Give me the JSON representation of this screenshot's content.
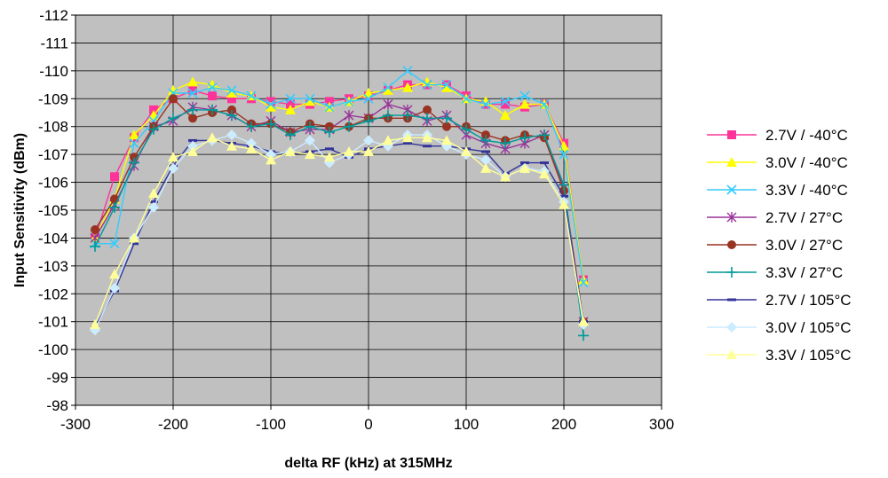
{
  "chart_data": {
    "type": "line",
    "xlabel": "delta RF (kHz) at 315MHz",
    "ylabel": "Input Sensitivity (dBm)",
    "xlim": [
      -300,
      300
    ],
    "ylim": [
      -98,
      -112
    ],
    "y_axis_reversed": true,
    "x_ticks": [
      -300,
      -200,
      -100,
      0,
      100,
      200,
      300
    ],
    "y_ticks": [
      -112,
      -111,
      -110,
      -109,
      -108,
      -107,
      -106,
      -105,
      -104,
      -103,
      -102,
      -101,
      -100,
      -99,
      -98
    ],
    "grid": true,
    "legend_position": "right",
    "plot_background": "#c0c0c0",
    "x": [
      -280,
      -260,
      -240,
      -220,
      -200,
      -180,
      -160,
      -140,
      -120,
      -100,
      -80,
      -60,
      -40,
      -20,
      0,
      20,
      40,
      60,
      80,
      100,
      120,
      140,
      160,
      180,
      200,
      220
    ],
    "series": [
      {
        "name": "2.7V / -40°C",
        "color": "#ff3399",
        "marker": "square",
        "values": [
          -104.0,
          -106.2,
          -107.6,
          -108.6,
          -109.0,
          -109.3,
          -109.1,
          -109.0,
          -109.0,
          -108.9,
          -108.8,
          -108.8,
          -108.9,
          -109.0,
          -109.1,
          -109.3,
          -109.5,
          -109.5,
          -109.5,
          -109.1,
          -108.8,
          -108.8,
          -108.7,
          -108.8,
          -107.4,
          -102.5
        ]
      },
      {
        "name": "3.0V / -40°C",
        "color": "#ffff00",
        "marker": "triangle",
        "values": [
          -104.0,
          -105.4,
          -107.7,
          -108.4,
          -109.3,
          -109.6,
          -109.5,
          -109.2,
          -109.1,
          -108.7,
          -108.6,
          -108.9,
          -108.7,
          -108.9,
          -109.2,
          -109.3,
          -109.4,
          -109.6,
          -109.4,
          -109.0,
          -108.9,
          -108.4,
          -108.8,
          -108.8,
          -107.3,
          -102.5
        ]
      },
      {
        "name": "3.3V / -40°C",
        "color": "#33ccff",
        "marker": "x",
        "values": [
          -103.8,
          -103.8,
          -107.4,
          -108.2,
          -109.2,
          -109.2,
          -109.4,
          -109.3,
          -109.1,
          -108.8,
          -109.0,
          -109.0,
          -108.7,
          -108.9,
          -109.0,
          -109.4,
          -110.0,
          -109.5,
          -109.5,
          -109.0,
          -108.8,
          -108.9,
          -109.1,
          -108.8,
          -107.0,
          -102.4
        ]
      },
      {
        "name": "2.7V / 27°C",
        "color": "#993399",
        "marker": "asterisk",
        "values": [
          -104.0,
          -105.2,
          -106.6,
          -108.0,
          -108.2,
          -108.7,
          -108.6,
          -108.4,
          -108.0,
          -108.2,
          -107.8,
          -107.9,
          -107.9,
          -108.4,
          -108.3,
          -108.8,
          -108.6,
          -108.2,
          -108.4,
          -107.7,
          -107.4,
          -107.2,
          -107.4,
          -107.7,
          -105.8,
          -101.0
        ]
      },
      {
        "name": "3.0V / 27°C",
        "color": "#993322",
        "marker": "circle",
        "values": [
          -104.3,
          -105.4,
          -106.9,
          -108.0,
          -109.0,
          -108.3,
          -108.5,
          -108.6,
          -108.1,
          -108.1,
          -107.8,
          -108.1,
          -108.0,
          -108.0,
          -108.3,
          -108.3,
          -108.3,
          -108.6,
          -108.0,
          -108.0,
          -107.7,
          -107.5,
          -107.7,
          -107.6,
          -105.7,
          -101.0
        ]
      },
      {
        "name": "3.3V / 27°C",
        "color": "#009999",
        "marker": "plus",
        "values": [
          -103.7,
          -105.1,
          -106.7,
          -107.9,
          -108.3,
          -108.6,
          -108.6,
          -108.4,
          -108.0,
          -108.1,
          -107.7,
          -108.0,
          -107.8,
          -108.0,
          -108.2,
          -108.4,
          -108.4,
          -108.3,
          -108.3,
          -107.9,
          -107.5,
          -107.4,
          -107.6,
          -107.7,
          -105.9,
          -100.5
        ]
      },
      {
        "name": "2.7V / 105°C",
        "color": "#333399",
        "marker": "dash",
        "values": [
          -100.8,
          -102.1,
          -103.8,
          -105.3,
          -106.6,
          -107.5,
          -107.5,
          -107.4,
          -107.3,
          -107.1,
          -107.0,
          -107.1,
          -107.2,
          -106.9,
          -107.2,
          -107.3,
          -107.4,
          -107.3,
          -107.3,
          -107.2,
          -107.1,
          -106.3,
          -106.7,
          -106.7,
          -105.5,
          -101.0
        ]
      },
      {
        "name": "3.0V / 105°C",
        "color": "#ccecff",
        "marker": "diamond",
        "values": [
          -100.7,
          -102.2,
          -104.0,
          -105.1,
          -106.5,
          -107.3,
          -107.5,
          -107.7,
          -107.4,
          -107.0,
          -107.1,
          -107.5,
          -106.7,
          -107.0,
          -107.5,
          -107.3,
          -107.7,
          -107.7,
          -107.3,
          -107.0,
          -106.8,
          -106.2,
          -106.5,
          -106.4,
          -105.3,
          -100.9
        ]
      },
      {
        "name": "3.3V / 105°C",
        "color": "#ffff99",
        "marker": "triangle",
        "values": [
          -100.9,
          -102.7,
          -104.0,
          -105.6,
          -106.9,
          -107.1,
          -107.6,
          -107.3,
          -107.2,
          -106.8,
          -107.1,
          -107.0,
          -106.9,
          -107.1,
          -107.1,
          -107.5,
          -107.6,
          -107.6,
          -107.5,
          -107.1,
          -106.5,
          -106.2,
          -106.5,
          -106.3,
          -105.2,
          -101.0
        ]
      }
    ]
  }
}
